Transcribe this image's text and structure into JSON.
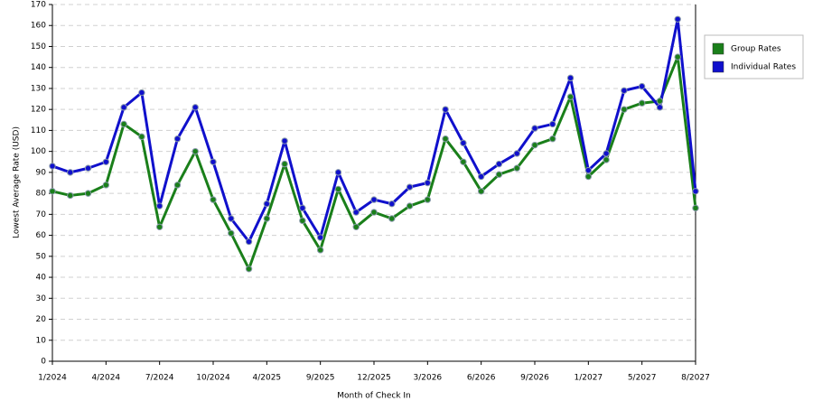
{
  "chart_data": {
    "type": "line",
    "x_label": "Month of Check In",
    "y_label": "Lowest Average Rate (USD)",
    "categories": [
      "1/2024",
      null,
      null,
      "4/2024",
      null,
      null,
      "7/2024",
      null,
      null,
      "10/2024",
      null,
      null,
      "4/2025",
      null,
      null,
      "9/2025",
      null,
      null,
      "12/2025",
      null,
      null,
      "3/2026",
      null,
      null,
      "6/2026",
      null,
      null,
      "9/2026",
      null,
      null,
      "1/2027",
      null,
      null,
      "5/2027",
      null,
      null,
      "8/2027"
    ],
    "series": [
      {
        "name": "Group Rates",
        "color": "#1a7f1a",
        "values": [
          81,
          79,
          80,
          84,
          113,
          107,
          64,
          84,
          100,
          77,
          61,
          44,
          68,
          94,
          67,
          53,
          82,
          64,
          71,
          68,
          74,
          77,
          106,
          95,
          81,
          89,
          92,
          103,
          106,
          126,
          88,
          96,
          120,
          123,
          124,
          145,
          73
        ]
      },
      {
        "name": "Individual Rates",
        "color": "#1010cc",
        "values": [
          93,
          90,
          92,
          95,
          121,
          128,
          74,
          106,
          121,
          95,
          68,
          57,
          75,
          105,
          73,
          59,
          90,
          71,
          77,
          75,
          83,
          85,
          120,
          104,
          88,
          94,
          99,
          111,
          113,
          135,
          91,
          99,
          129,
          131,
          121,
          163,
          81
        ]
      }
    ],
    "ylim": [
      0,
      170
    ],
    "yticks": [
      0,
      10,
      20,
      30,
      40,
      50,
      60,
      70,
      80,
      90,
      100,
      110,
      120,
      130,
      140,
      150,
      160,
      170
    ],
    "grid": true,
    "legend": "right"
  }
}
